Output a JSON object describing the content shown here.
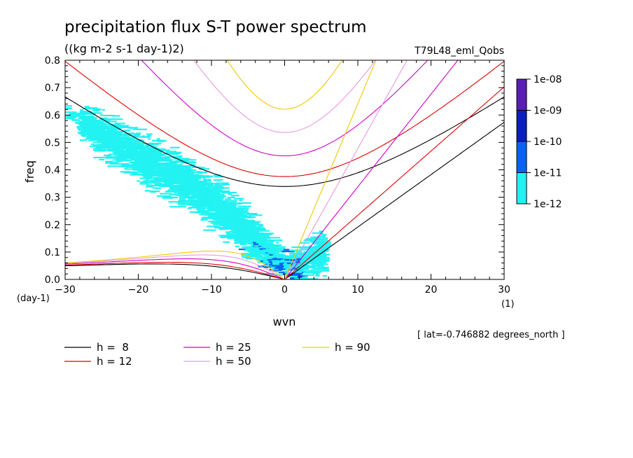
{
  "chart_data": {
    "type": "heatmap",
    "title": "precipitation flux S-T power spectrum",
    "subtitle": "((kg m-2 s-1 day-1)2)",
    "run_label": "T79L48_eml_Qobs",
    "xlabel": "wvn",
    "ylabel": "freq",
    "x_unit": "(1)",
    "y_unit": "(day-1)",
    "xlim": [
      -30,
      30
    ],
    "ylim": [
      0,
      0.8
    ],
    "x_ticks": [
      -30,
      -20,
      -10,
      0,
      10,
      20,
      30
    ],
    "y_ticks": [
      0.0,
      0.1,
      0.2,
      0.3,
      0.4,
      0.5,
      0.6,
      0.7,
      0.8
    ],
    "x_tick_labels": [
      "−30",
      "−20",
      "−10",
      "0",
      "10",
      "20",
      "30"
    ],
    "y_tick_labels": [
      "0.0",
      "0.1",
      "0.2",
      "0.3",
      "0.4",
      "0.5",
      "0.6",
      "0.7",
      "0.8"
    ],
    "location_note": "[ lat=-0.746882 degrees_north ]",
    "colorbar": {
      "labels": [
        "1e-08",
        "1e-09",
        "1e-10",
        "1e-11",
        "1e-12"
      ],
      "colors": [
        "#5a1fb0",
        "#0a20b8",
        "#0a62f0",
        "#22f2f2"
      ]
    },
    "dispersion_curves": [
      {
        "name": "h =  8",
        "h": 8,
        "color": "#000000"
      },
      {
        "name": "h = 12",
        "h": 12,
        "color": "#e00000"
      },
      {
        "name": "h = 25",
        "h": 25,
        "color": "#d000c8"
      },
      {
        "name": "h = 50",
        "h": 50,
        "color": "#e79ae0"
      },
      {
        "name": "h = 90",
        "h": 90,
        "color": "#f0c800"
      }
    ],
    "spectrum_band": {
      "description_points_wvn": [
        -30,
        -25,
        -20,
        -15,
        -10,
        -6,
        -3,
        0,
        3,
        5
      ],
      "center_freq": [
        0.62,
        0.53,
        0.45,
        0.38,
        0.29,
        0.2,
        0.12,
        0.05,
        0.06,
        0.1
      ],
      "half_width": [
        0.02,
        0.06,
        0.07,
        0.07,
        0.07,
        0.07,
        0.06,
        0.04,
        0.05,
        0.06
      ]
    }
  }
}
